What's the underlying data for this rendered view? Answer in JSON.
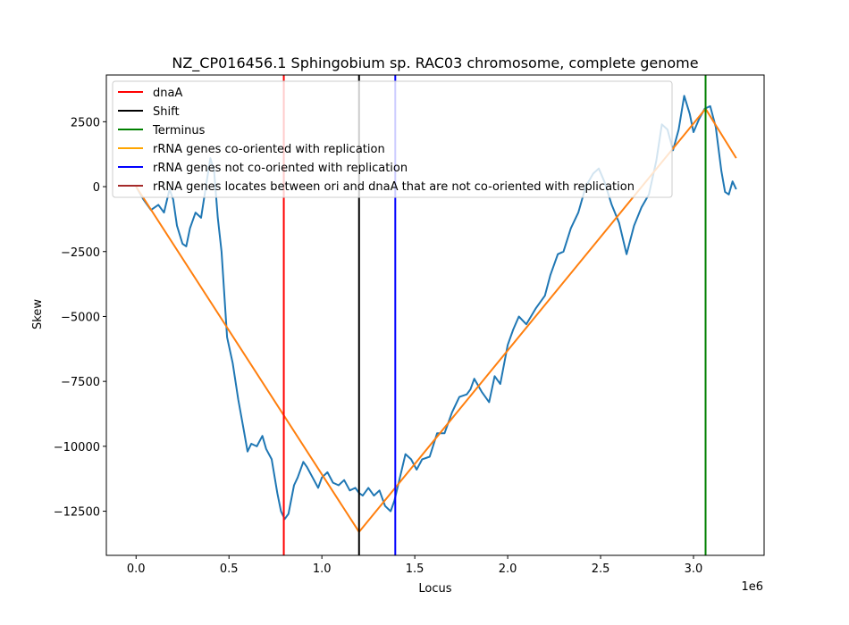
{
  "chart_data": {
    "type": "line",
    "title": "NZ_CP016456.1 Sphingobium sp. RAC03 chromosome, complete genome",
    "xlabel": "Locus",
    "ylabel": "Skew",
    "x_offset_label": "1e6",
    "xlim": [
      -160000,
      3380000
    ],
    "ylim": [
      -14200,
      4300
    ],
    "xticks": [
      0,
      500000,
      1000000,
      1500000,
      2000000,
      2500000,
      3000000
    ],
    "xtick_labels": [
      "0.0",
      "0.5",
      "1.0",
      "1.5",
      "2.0",
      "2.5",
      "3.0"
    ],
    "yticks": [
      2500,
      0,
      -2500,
      -5000,
      -7500,
      -10000,
      -12500
    ],
    "ytick_labels": [
      "2500",
      "0",
      "−2500",
      "−5000",
      "−7500",
      "−10000",
      "−12500"
    ],
    "grid": false,
    "legend_position": "top-left",
    "legend": [
      {
        "label": "dnaA",
        "color": "#ff0000"
      },
      {
        "label": "Shift",
        "color": "#000000"
      },
      {
        "label": "Terminus",
        "color": "#008000"
      },
      {
        "label": "rRNA genes co-oriented with replication",
        "color": "#ffa500"
      },
      {
        "label": "rRNA genes not co-oriented with replication",
        "color": "#0000ff"
      },
      {
        "label": "rRNA genes locates between ori and dnaA that are not co-oriented with replication",
        "color": "#a52a2a"
      }
    ],
    "vlines": [
      {
        "name": "dnaA",
        "x": 795000,
        "color": "#ff0000"
      },
      {
        "name": "Shift",
        "x": 1200000,
        "color": "#000000"
      },
      {
        "name": "Terminus",
        "x": 3065000,
        "color": "#008000"
      },
      {
        "name": "rRNA genes not co-oriented with replication",
        "x": 1395000,
        "color": "#0000ff"
      }
    ],
    "series": [
      {
        "color": "#1f77b4",
        "x": [
          0,
          40000,
          80000,
          120000,
          150000,
          180000,
          200000,
          220000,
          250000,
          270000,
          290000,
          320000,
          350000,
          380000,
          400000,
          420000,
          440000,
          460000,
          490000,
          520000,
          550000,
          580000,
          600000,
          620000,
          650000,
          680000,
          700000,
          730000,
          760000,
          780000,
          800000,
          820000,
          850000,
          870000,
          900000,
          920000,
          950000,
          980000,
          1000000,
          1030000,
          1060000,
          1090000,
          1120000,
          1150000,
          1180000,
          1200000,
          1220000,
          1250000,
          1280000,
          1310000,
          1340000,
          1370000,
          1390000,
          1420000,
          1450000,
          1480000,
          1510000,
          1540000,
          1580000,
          1620000,
          1660000,
          1700000,
          1740000,
          1780000,
          1800000,
          1820000,
          1860000,
          1900000,
          1930000,
          1960000,
          2000000,
          2030000,
          2060000,
          2100000,
          2150000,
          2200000,
          2230000,
          2270000,
          2300000,
          2340000,
          2380000,
          2420000,
          2460000,
          2490000,
          2520000,
          2560000,
          2600000,
          2640000,
          2680000,
          2720000,
          2760000,
          2800000,
          2830000,
          2860000,
          2890000,
          2920000,
          2950000,
          2980000,
          3000000,
          3030000,
          3060000,
          3090000,
          3120000,
          3150000,
          3170000,
          3190000,
          3210000,
          3230000
        ],
        "values": [
          0,
          -500,
          -900,
          -700,
          -1000,
          -100,
          -500,
          -1500,
          -2200,
          -2300,
          -1600,
          -1000,
          -1200,
          200,
          1100,
          600,
          -1200,
          -2500,
          -5800,
          -6800,
          -8200,
          -9400,
          -10200,
          -9900,
          -10000,
          -9600,
          -10100,
          -10500,
          -11800,
          -12500,
          -12800,
          -12600,
          -11500,
          -11200,
          -10600,
          -10800,
          -11200,
          -11600,
          -11200,
          -11000,
          -11400,
          -11500,
          -11300,
          -11700,
          -11600,
          -11800,
          -11900,
          -11600,
          -11900,
          -11700,
          -12300,
          -12500,
          -12100,
          -11200,
          -10300,
          -10500,
          -10900,
          -10500,
          -10400,
          -9500,
          -9500,
          -8700,
          -8100,
          -8000,
          -7800,
          -7400,
          -7900,
          -8300,
          -7300,
          -7600,
          -6100,
          -5500,
          -5000,
          -5300,
          -4700,
          -4200,
          -3400,
          -2600,
          -2500,
          -1600,
          -1000,
          0,
          500,
          700,
          200,
          -700,
          -1400,
          -2600,
          -1500,
          -800,
          -300,
          1000,
          2400,
          2200,
          1400,
          2200,
          3500,
          2800,
          2100,
          2600,
          3000,
          3100,
          2300,
          600,
          -200,
          -300,
          200,
          -100
        ]
      },
      {
        "color": "#ff7f0e",
        "x": [
          0,
          1200000,
          3065000,
          3230000
        ],
        "values": [
          0,
          -13300,
          3000,
          1100
        ]
      }
    ]
  }
}
